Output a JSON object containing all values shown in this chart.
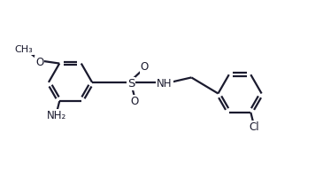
{
  "background_color": "#ffffff",
  "line_color": "#1a1a2e",
  "line_width": 1.6,
  "font_size": 8.5,
  "figsize": [
    3.65,
    2.11
  ],
  "dpi": 100,
  "xlim": [
    0,
    10
  ],
  "ylim": [
    0,
    5.8
  ]
}
